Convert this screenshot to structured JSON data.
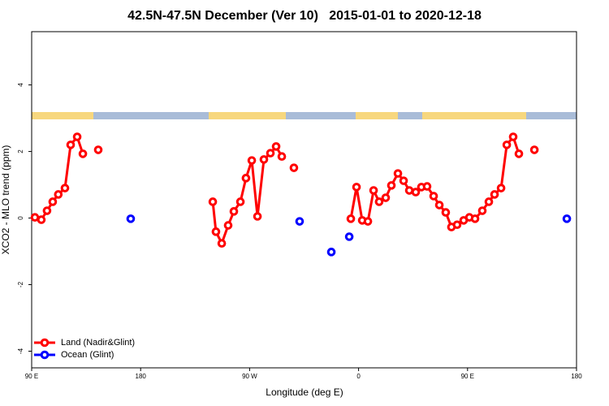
{
  "chart_data": {
    "type": "line",
    "title": "42.5N-47.5N December (Ver 10)   2015-01-01 to 2020-12-18",
    "xlabel": "Longitude (deg E)",
    "ylabel": "XCO2 - MLO trend (ppm)",
    "xlim": [
      90,
      540
    ],
    "ylim": [
      -4.5,
      5.6
    ],
    "xticks": [
      {
        "value": 90,
        "label": "90 E"
      },
      {
        "value": 180,
        "label": "180"
      },
      {
        "value": 270,
        "label": "90 W"
      },
      {
        "value": 360,
        "label": "0"
      },
      {
        "value": 450,
        "label": "90 E"
      },
      {
        "value": 540,
        "label": "180"
      }
    ],
    "yticks": [
      -4,
      -2,
      0,
      2,
      4
    ],
    "legend": "bottom-left",
    "series": [
      {
        "name": "Land (Nadir&Glint)",
        "color": "#ff0000",
        "line": true,
        "x": [
          92.7,
          98,
          102.7,
          107.4,
          112,
          117.5,
          122.2,
          127.6,
          132.3,
          null,
          145,
          null,
          239.6,
          242.2,
          247,
          252.3,
          257,
          262.4,
          267,
          271.8,
          276.5,
          281.8,
          287.2,
          291.9,
          296.6,
          null,
          306.6,
          null,
          353.6,
          358.3,
          363,
          367.7,
          372.4,
          377,
          382.4,
          387.1,
          392.5,
          397.2,
          401.9,
          407.2,
          411.9,
          416.6,
          422,
          426.7,
          432,
          436.7,
          441.4,
          446.8,
          451.5,
          456.2,
          462.2,
          467.6,
          472.3,
          477.7,
          482.4,
          487.7,
          492.4,
          null,
          505.2
        ],
        "values": [
          0.02,
          -0.05,
          0.22,
          0.49,
          0.71,
          0.9,
          2.2,
          2.44,
          1.93,
          null,
          2.05,
          null,
          0.49,
          -0.41,
          -0.76,
          -0.22,
          0.2,
          0.49,
          1.2,
          1.73,
          0.05,
          1.76,
          1.95,
          2.15,
          1.85,
          null,
          1.51,
          null,
          -0.02,
          0.93,
          -0.07,
          -0.1,
          0.83,
          0.49,
          0.61,
          0.98,
          1.34,
          1.12,
          0.83,
          0.78,
          0.93,
          0.95,
          0.66,
          0.39,
          0.17,
          -0.27,
          -0.2,
          -0.07,
          0.02,
          -0.02,
          0.22,
          0.49,
          0.71,
          0.9,
          2.2,
          2.44,
          1.93,
          null,
          2.05
        ]
      },
      {
        "name": "Ocean (Glint)",
        "color": "#0000ff",
        "line": false,
        "x": [
          171.8,
          311.3,
          337.5,
          352.3,
          532
        ],
        "values": [
          -0.02,
          -0.1,
          -1.02,
          -0.56,
          -0.02
        ]
      }
    ]
  }
}
